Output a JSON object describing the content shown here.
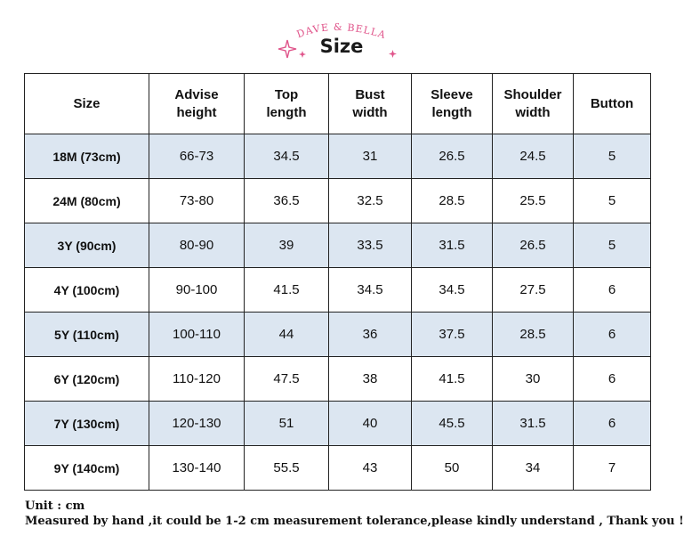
{
  "header": {
    "brand": "DAVE & BELLA",
    "title": "Size",
    "accent_color": "#e0548a"
  },
  "table": {
    "columns": [
      [
        "Size"
      ],
      [
        "Advise",
        "height"
      ],
      [
        "Top",
        "length"
      ],
      [
        "Bust",
        "width"
      ],
      [
        "Sleeve",
        "length"
      ],
      [
        "Shoulder",
        "width"
      ],
      [
        "Button"
      ]
    ],
    "rows": [
      [
        "18M (73cm)",
        "66-73",
        "34.5",
        "31",
        "26.5",
        "24.5",
        "5"
      ],
      [
        "24M (80cm)",
        "73-80",
        "36.5",
        "32.5",
        "28.5",
        "25.5",
        "5"
      ],
      [
        "3Y (90cm)",
        "80-90",
        "39",
        "33.5",
        "31.5",
        "26.5",
        "5"
      ],
      [
        "4Y (100cm)",
        "90-100",
        "41.5",
        "34.5",
        "34.5",
        "27.5",
        "6"
      ],
      [
        "5Y (110cm)",
        "100-110",
        "44",
        "36",
        "37.5",
        "28.5",
        "6"
      ],
      [
        "6Y (120cm)",
        "110-120",
        "47.5",
        "38",
        "41.5",
        "30",
        "6"
      ],
      [
        "7Y (130cm)",
        "120-130",
        "51",
        "40",
        "45.5",
        "31.5",
        "6"
      ],
      [
        "9Y (140cm)",
        "130-140",
        "55.5",
        "43",
        "50",
        "34",
        "7"
      ]
    ],
    "shade_color": "#dce6f1"
  },
  "notes": {
    "unit": "Unit : cm",
    "disclaimer": "Measured by hand ,it could be 1-2 cm measurement tolerance,please kindly understand , Thank you !"
  }
}
